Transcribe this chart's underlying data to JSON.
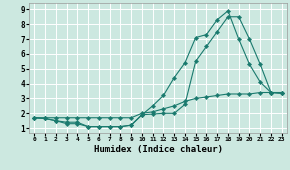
{
  "xlabel": "Humidex (Indice chaleur)",
  "bg_color": "#cce8e0",
  "grid_color": "#ffffff",
  "line_color": "#1a7a6e",
  "marker": "D",
  "marker_size": 2.2,
  "line_width": 0.8,
  "xlim": [
    -0.5,
    23.5
  ],
  "ylim": [
    0.7,
    9.4
  ],
  "xticks": [
    0,
    1,
    2,
    3,
    4,
    5,
    6,
    7,
    8,
    9,
    10,
    11,
    12,
    13,
    14,
    15,
    16,
    17,
    18,
    19,
    20,
    21,
    22,
    23
  ],
  "yticks": [
    1,
    2,
    3,
    4,
    5,
    6,
    7,
    8,
    9
  ],
  "series": [
    {
      "x": [
        0,
        1,
        2,
        3,
        4,
        5,
        6,
        7,
        8,
        9,
        10,
        11,
        12,
        13,
        14,
        15,
        16,
        17,
        18,
        19,
        20,
        21,
        22,
        23
      ],
      "y": [
        1.7,
        1.65,
        1.5,
        1.3,
        1.3,
        1.1,
        1.1,
        1.1,
        1.1,
        1.2,
        1.9,
        2.5,
        3.2,
        4.4,
        5.4,
        7.1,
        7.3,
        8.3,
        8.9,
        7.0,
        5.3,
        4.1,
        3.4,
        3.35
      ]
    },
    {
      "x": [
        0,
        1,
        2,
        3,
        4,
        5,
        6,
        7,
        8,
        9,
        10,
        11,
        12,
        13,
        14,
        15,
        16,
        17,
        18,
        19,
        20,
        21,
        22,
        23
      ],
      "y": [
        1.7,
        1.65,
        1.5,
        1.4,
        1.4,
        1.1,
        1.1,
        1.1,
        1.1,
        1.2,
        1.9,
        1.95,
        2.0,
        2.0,
        2.6,
        5.5,
        6.5,
        7.5,
        8.5,
        8.5,
        7.0,
        5.3,
        3.4,
        3.35
      ]
    },
    {
      "x": [
        0,
        1,
        2,
        3,
        4,
        5,
        6,
        7,
        8,
        9,
        10,
        11,
        12,
        13,
        14,
        15,
        16,
        17,
        18,
        19,
        20,
        21,
        22,
        23
      ],
      "y": [
        1.7,
        1.7,
        1.7,
        1.7,
        1.7,
        1.7,
        1.7,
        1.7,
        1.7,
        1.7,
        2.0,
        2.1,
        2.3,
        2.5,
        2.8,
        3.0,
        3.1,
        3.2,
        3.3,
        3.3,
        3.3,
        3.4,
        3.4,
        3.4
      ]
    }
  ]
}
